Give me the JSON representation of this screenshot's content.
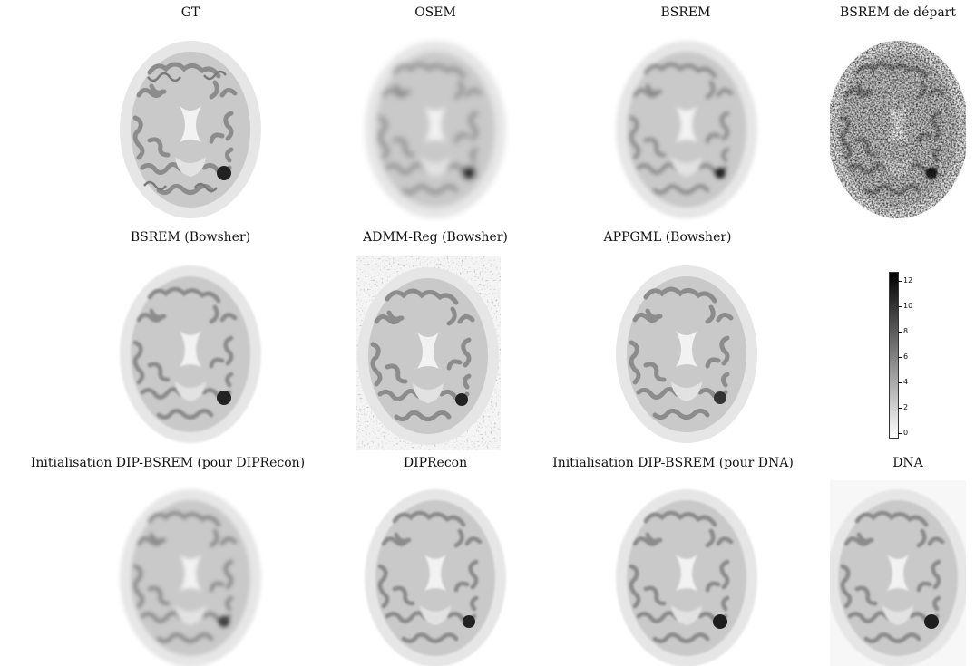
{
  "row1": {
    "titles": [
      "GT",
      "OSEM",
      "BSREM",
      "BSREM de départ"
    ]
  },
  "row2": {
    "titles": [
      "BSREM (Bowsher)",
      "ADMM-Reg (Bowsher)",
      "APPGML (Bowsher)"
    ]
  },
  "row3": {
    "titles": [
      "Initialisation DIP-BSREM (pour DIPRecon)",
      "DIPRecon",
      "Initialisation DIP-BSREM (pour DNA)",
      "DNA"
    ]
  },
  "colorbar": {
    "ticks": [
      "12",
      "10",
      "8",
      "6",
      "4",
      "2",
      "0"
    ],
    "min": 0,
    "max": 12,
    "colormap": "gray_r"
  },
  "colors": {
    "background": "#ffffff",
    "scalp": "#e6e6e6",
    "white_matter": "#c9c9c9",
    "gray_matter": "#8c8c8c",
    "ventricle": "#f2f2f2",
    "lesion": "#222222"
  }
}
